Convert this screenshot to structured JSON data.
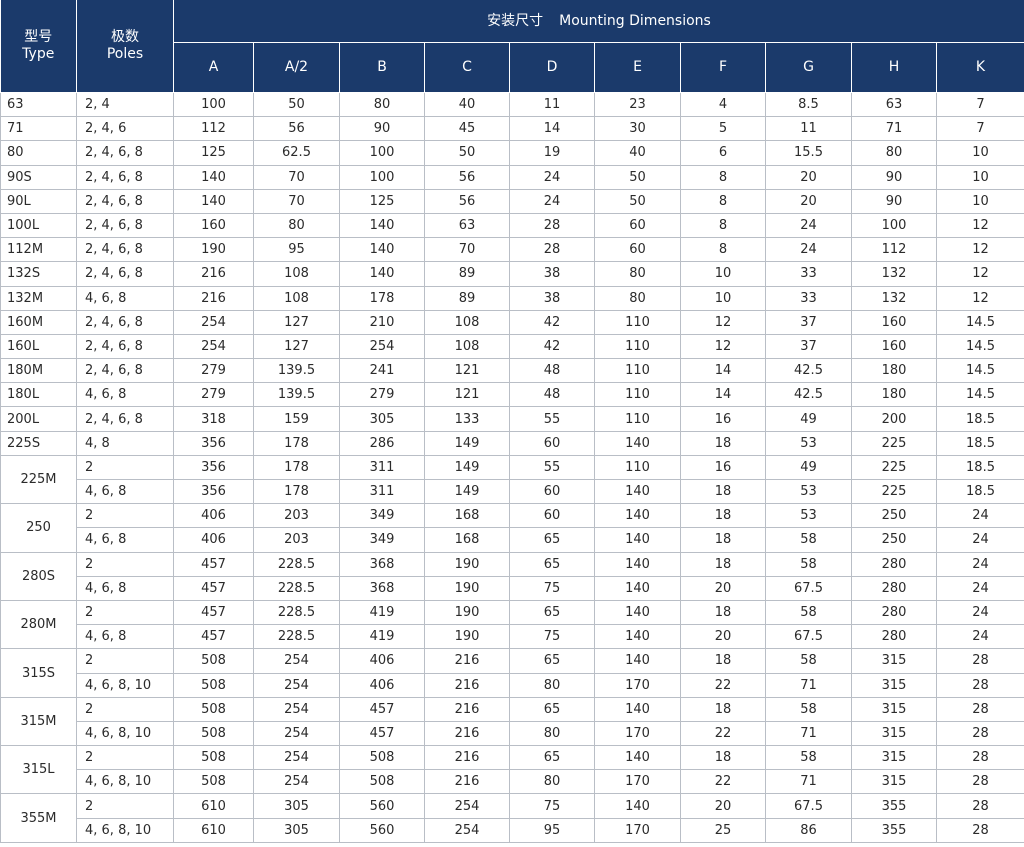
{
  "header": {
    "type_zh": "型号",
    "type_en": "Type",
    "poles_zh": "极数",
    "poles_en": "Poles",
    "group_zh": "安装尺寸",
    "group_en": "Mounting Dimensions",
    "columns": [
      "A",
      "A/2",
      "B",
      "C",
      "D",
      "E",
      "F",
      "G",
      "H",
      "K"
    ]
  },
  "rows": [
    {
      "type": "63",
      "span": 1,
      "poles": "2, 4",
      "values": [
        "100",
        "50",
        "80",
        "40",
        "11",
        "23",
        "4",
        "8.5",
        "63",
        "7"
      ]
    },
    {
      "type": "71",
      "span": 1,
      "poles": "2, 4, 6",
      "values": [
        "112",
        "56",
        "90",
        "45",
        "14",
        "30",
        "5",
        "11",
        "71",
        "7"
      ]
    },
    {
      "type": "80",
      "span": 1,
      "poles": "2, 4, 6, 8",
      "values": [
        "125",
        "62.5",
        "100",
        "50",
        "19",
        "40",
        "6",
        "15.5",
        "80",
        "10"
      ]
    },
    {
      "type": "90S",
      "span": 1,
      "poles": "2, 4, 6, 8",
      "values": [
        "140",
        "70",
        "100",
        "56",
        "24",
        "50",
        "8",
        "20",
        "90",
        "10"
      ]
    },
    {
      "type": "90L",
      "span": 1,
      "poles": "2, 4, 6, 8",
      "values": [
        "140",
        "70",
        "125",
        "56",
        "24",
        "50",
        "8",
        "20",
        "90",
        "10"
      ]
    },
    {
      "type": "100L",
      "span": 1,
      "poles": "2, 4, 6, 8",
      "values": [
        "160",
        "80",
        "140",
        "63",
        "28",
        "60",
        "8",
        "24",
        "100",
        "12"
      ]
    },
    {
      "type": "112M",
      "span": 1,
      "poles": "2, 4, 6, 8",
      "values": [
        "190",
        "95",
        "140",
        "70",
        "28",
        "60",
        "8",
        "24",
        "112",
        "12"
      ]
    },
    {
      "type": "132S",
      "span": 1,
      "poles": "2, 4, 6, 8",
      "values": [
        "216",
        "108",
        "140",
        "89",
        "38",
        "80",
        "10",
        "33",
        "132",
        "12"
      ]
    },
    {
      "type": "132M",
      "span": 1,
      "poles": "4, 6, 8",
      "values": [
        "216",
        "108",
        "178",
        "89",
        "38",
        "80",
        "10",
        "33",
        "132",
        "12"
      ]
    },
    {
      "type": "160M",
      "span": 1,
      "poles": "2, 4, 6, 8",
      "values": [
        "254",
        "127",
        "210",
        "108",
        "42",
        "110",
        "12",
        "37",
        "160",
        "14.5"
      ]
    },
    {
      "type": "160L",
      "span": 1,
      "poles": "2, 4, 6, 8",
      "values": [
        "254",
        "127",
        "254",
        "108",
        "42",
        "110",
        "12",
        "37",
        "160",
        "14.5"
      ]
    },
    {
      "type": "180M",
      "span": 1,
      "poles": "2, 4, 6, 8",
      "values": [
        "279",
        "139.5",
        "241",
        "121",
        "48",
        "110",
        "14",
        "42.5",
        "180",
        "14.5"
      ]
    },
    {
      "type": "180L",
      "span": 1,
      "poles": "4, 6, 8",
      "values": [
        "279",
        "139.5",
        "279",
        "121",
        "48",
        "110",
        "14",
        "42.5",
        "180",
        "14.5"
      ]
    },
    {
      "type": "200L",
      "span": 1,
      "poles": "2, 4, 6, 8",
      "values": [
        "318",
        "159",
        "305",
        "133",
        "55",
        "110",
        "16",
        "49",
        "200",
        "18.5"
      ]
    },
    {
      "type": "225S",
      "span": 1,
      "poles": "4, 8",
      "values": [
        "356",
        "178",
        "286",
        "149",
        "60",
        "140",
        "18",
        "53",
        "225",
        "18.5"
      ]
    },
    {
      "type": "225M",
      "span": 2,
      "poles": "2",
      "values": [
        "356",
        "178",
        "311",
        "149",
        "55",
        "110",
        "16",
        "49",
        "225",
        "18.5"
      ]
    },
    {
      "type": "",
      "span": 0,
      "poles": "4, 6, 8",
      "values": [
        "356",
        "178",
        "311",
        "149",
        "60",
        "140",
        "18",
        "53",
        "225",
        "18.5"
      ]
    },
    {
      "type": "250",
      "span": 2,
      "poles": "2",
      "values": [
        "406",
        "203",
        "349",
        "168",
        "60",
        "140",
        "18",
        "53",
        "250",
        "24"
      ]
    },
    {
      "type": "",
      "span": 0,
      "poles": "4, 6, 8",
      "values": [
        "406",
        "203",
        "349",
        "168",
        "65",
        "140",
        "18",
        "58",
        "250",
        "24"
      ]
    },
    {
      "type": "280S",
      "span": 2,
      "poles": "2",
      "values": [
        "457",
        "228.5",
        "368",
        "190",
        "65",
        "140",
        "18",
        "58",
        "280",
        "24"
      ]
    },
    {
      "type": "",
      "span": 0,
      "poles": "4, 6, 8",
      "values": [
        "457",
        "228.5",
        "368",
        "190",
        "75",
        "140",
        "20",
        "67.5",
        "280",
        "24"
      ]
    },
    {
      "type": "280M",
      "span": 2,
      "poles": "2",
      "values": [
        "457",
        "228.5",
        "419",
        "190",
        "65",
        "140",
        "18",
        "58",
        "280",
        "24"
      ]
    },
    {
      "type": "",
      "span": 0,
      "poles": "4, 6, 8",
      "values": [
        "457",
        "228.5",
        "419",
        "190",
        "75",
        "140",
        "20",
        "67.5",
        "280",
        "24"
      ]
    },
    {
      "type": "315S",
      "span": 2,
      "poles": "2",
      "values": [
        "508",
        "254",
        "406",
        "216",
        "65",
        "140",
        "18",
        "58",
        "315",
        "28"
      ]
    },
    {
      "type": "",
      "span": 0,
      "poles": "4, 6, 8, 10",
      "values": [
        "508",
        "254",
        "406",
        "216",
        "80",
        "170",
        "22",
        "71",
        "315",
        "28"
      ]
    },
    {
      "type": "315M",
      "span": 2,
      "poles": "2",
      "values": [
        "508",
        "254",
        "457",
        "216",
        "65",
        "140",
        "18",
        "58",
        "315",
        "28"
      ]
    },
    {
      "type": "",
      "span": 0,
      "poles": "4, 6, 8, 10",
      "values": [
        "508",
        "254",
        "457",
        "216",
        "80",
        "170",
        "22",
        "71",
        "315",
        "28"
      ]
    },
    {
      "type": "315L",
      "span": 2,
      "poles": "2",
      "values": [
        "508",
        "254",
        "508",
        "216",
        "65",
        "140",
        "18",
        "58",
        "315",
        "28"
      ]
    },
    {
      "type": "",
      "span": 0,
      "poles": "4, 6, 8, 10",
      "values": [
        "508",
        "254",
        "508",
        "216",
        "80",
        "170",
        "22",
        "71",
        "315",
        "28"
      ]
    },
    {
      "type": "355M",
      "span": 2,
      "poles": "2",
      "values": [
        "610",
        "305",
        "560",
        "254",
        "75",
        "140",
        "20",
        "67.5",
        "355",
        "28"
      ]
    },
    {
      "type": "",
      "span": 0,
      "poles": "4, 6, 8, 10",
      "values": [
        "610",
        "305",
        "560",
        "254",
        "95",
        "170",
        "25",
        "86",
        "355",
        "28"
      ]
    }
  ]
}
